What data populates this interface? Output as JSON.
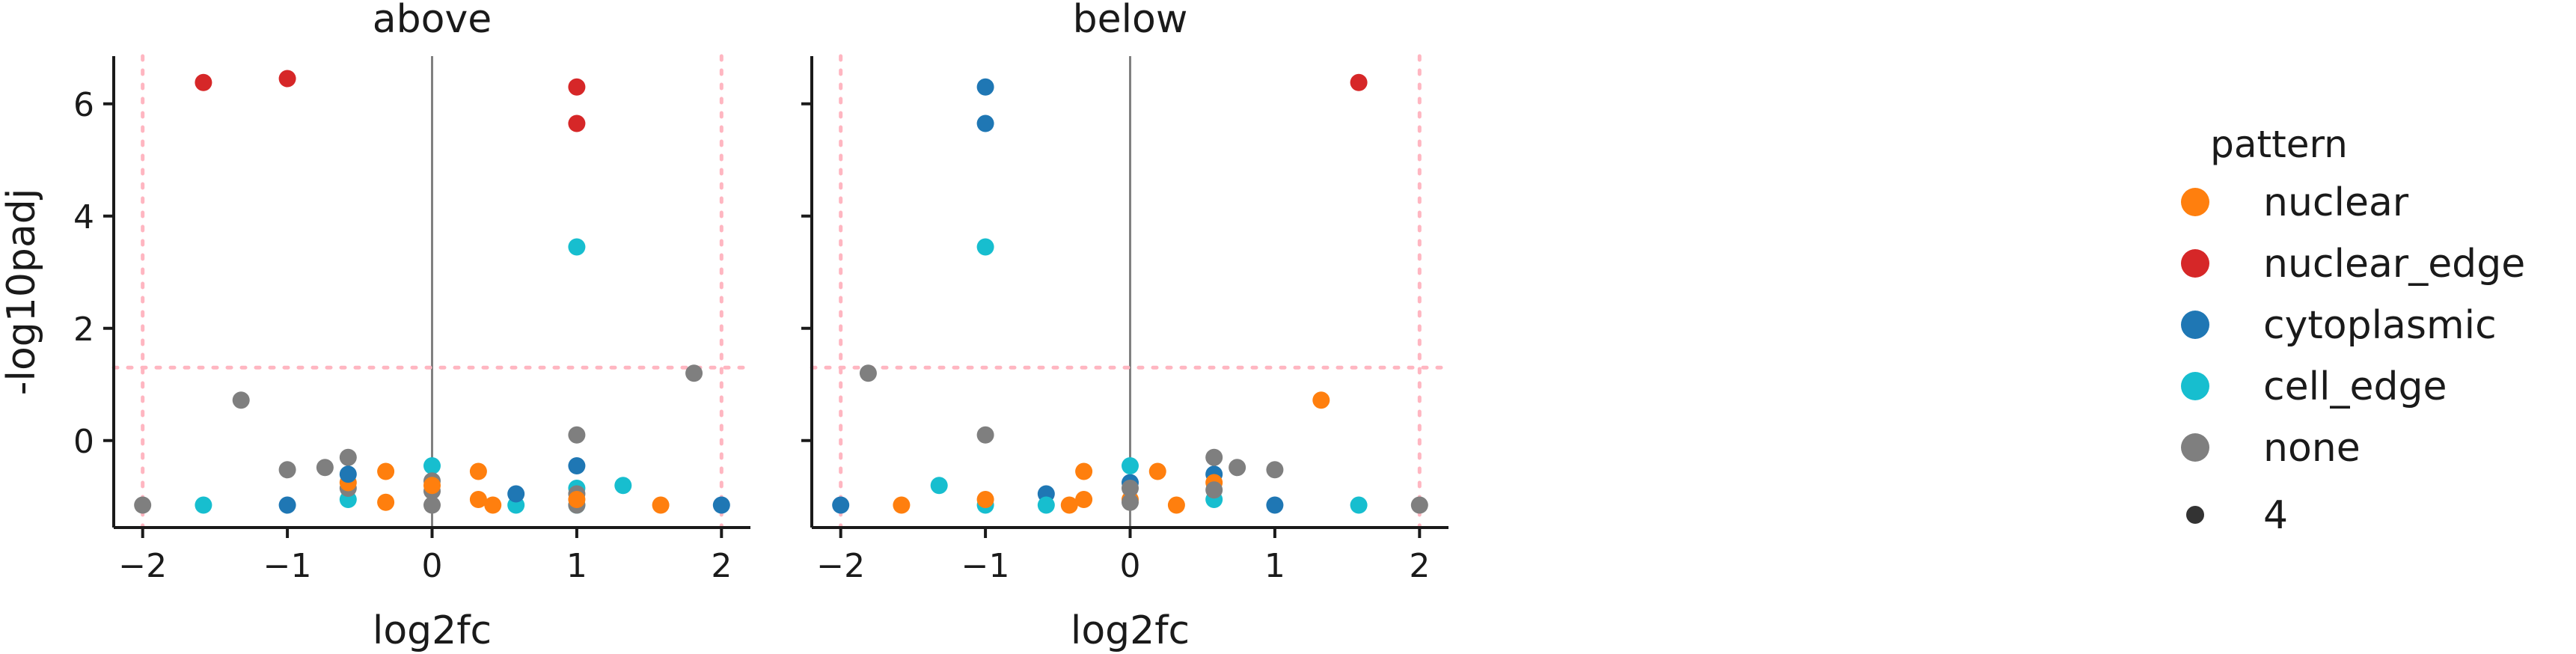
{
  "chart_data": {
    "type": "scatter",
    "xlabel": "log2fc",
    "ylabel": "-log10padj",
    "xlim": [
      -2.2,
      2.2
    ],
    "ylim": [
      -1.55,
      6.85
    ],
    "xticks": [
      -2,
      -1,
      0,
      1,
      2
    ],
    "yticks": [
      0,
      2,
      4,
      6
    ],
    "xtick_labels": [
      "−2",
      "−1",
      "0",
      "1",
      "2"
    ],
    "ytick_labels": [
      "0",
      "2",
      "4",
      "6"
    ],
    "threshold_lines": {
      "x": [
        -2,
        2
      ],
      "y": 1.3,
      "color": "#ffb6c1"
    },
    "zero_line": {
      "x": 0,
      "color": "#808080"
    },
    "legend": {
      "title": "pattern",
      "placement": "right",
      "entries": [
        {
          "label": "nuclear",
          "color": "#ff7f0e"
        },
        {
          "label": "nuclear_edge",
          "color": "#d62728"
        },
        {
          "label": "cytoplasmic",
          "color": "#1f77b4"
        },
        {
          "label": "cell_edge",
          "color": "#17becf"
        },
        {
          "label": "none",
          "color": "#7f7f7f"
        }
      ],
      "size_entry": {
        "label": "4",
        "color": "#333333"
      }
    },
    "panels": [
      {
        "title": "above",
        "series": [
          {
            "name": "nuclear_edge",
            "color": "#d62728",
            "points": [
              [
                -1.58,
                6.38
              ],
              [
                -1.0,
                6.45
              ],
              [
                1.0,
                6.3
              ],
              [
                1.0,
                5.65
              ]
            ]
          },
          {
            "name": "cell_edge",
            "color": "#17becf",
            "points": [
              [
                1.0,
                3.45
              ],
              [
                -1.58,
                -1.15
              ],
              [
                0.0,
                -0.45
              ],
              [
                0.58,
                -1.15
              ],
              [
                1.0,
                -0.85
              ],
              [
                1.32,
                -0.8
              ],
              [
                1.0,
                -1.15
              ],
              [
                -0.58,
                -1.05
              ]
            ]
          },
          {
            "name": "none",
            "color": "#7f7f7f",
            "points": [
              [
                -1.32,
                0.72
              ],
              [
                1.81,
                1.2
              ],
              [
                1.0,
                0.1
              ],
              [
                -2.0,
                -1.15
              ],
              [
                -1.0,
                -0.52
              ],
              [
                -0.74,
                -0.48
              ],
              [
                -0.58,
                -0.3
              ],
              [
                -0.58,
                -0.85
              ],
              [
                0.0,
                -0.72
              ],
              [
                0.0,
                -0.9
              ],
              [
                0.0,
                -1.15
              ],
              [
                1.0,
                -1.15
              ],
              [
                1.0,
                -0.95
              ]
            ]
          },
          {
            "name": "nuclear",
            "color": "#ff7f0e",
            "points": [
              [
                -0.32,
                -0.55
              ],
              [
                0.32,
                -0.55
              ],
              [
                -0.32,
                -1.1
              ],
              [
                0.32,
                -1.05
              ],
              [
                0.42,
                -1.15
              ],
              [
                1.58,
                -1.15
              ],
              [
                -0.58,
                -0.75
              ],
              [
                0.0,
                -0.8
              ],
              [
                1.0,
                -1.05
              ]
            ]
          },
          {
            "name": "cytoplasmic",
            "color": "#1f77b4",
            "points": [
              [
                -1.0,
                -1.15
              ],
              [
                0.58,
                -0.95
              ],
              [
                1.0,
                -0.45
              ],
              [
                2.0,
                -1.15
              ],
              [
                -0.58,
                -0.6
              ]
            ]
          }
        ]
      },
      {
        "title": "below",
        "series": [
          {
            "name": "cytoplasmic",
            "color": "#1f77b4",
            "points": [
              [
                -1.0,
                6.3
              ],
              [
                -1.0,
                5.65
              ],
              [
                -2.0,
                -1.15
              ],
              [
                -0.58,
                -0.95
              ],
              [
                0.58,
                -0.6
              ],
              [
                1.0,
                -1.15
              ],
              [
                0.0,
                -0.75
              ]
            ]
          },
          {
            "name": "cell_edge",
            "color": "#17becf",
            "points": [
              [
                -1.0,
                3.45
              ],
              [
                -1.32,
                -0.8
              ],
              [
                -1.0,
                -1.15
              ],
              [
                -0.58,
                -1.15
              ],
              [
                0.0,
                -0.45
              ],
              [
                0.58,
                -1.05
              ],
              [
                1.58,
                -1.15
              ]
            ]
          },
          {
            "name": "nuclear_edge",
            "color": "#d62728",
            "points": [
              [
                1.58,
                6.38
              ]
            ]
          },
          {
            "name": "nuclear",
            "color": "#ff7f0e",
            "points": [
              [
                1.32,
                0.72
              ],
              [
                -1.58,
                -1.15
              ],
              [
                -0.32,
                -0.55
              ],
              [
                0.19,
                -0.55
              ],
              [
                -0.32,
                -1.05
              ],
              [
                -0.42,
                -1.15
              ],
              [
                0.32,
                -1.15
              ],
              [
                0.58,
                -0.75
              ],
              [
                -1.0,
                -1.05
              ],
              [
                0.0,
                -1.05
              ]
            ]
          },
          {
            "name": "none",
            "color": "#7f7f7f",
            "points": [
              [
                -1.81,
                1.2
              ],
              [
                -1.0,
                0.1
              ],
              [
                0.0,
                -0.85
              ],
              [
                0.0,
                -1.1
              ],
              [
                0.58,
                -0.3
              ],
              [
                0.74,
                -0.48
              ],
              [
                1.0,
                -0.52
              ],
              [
                0.58,
                -0.88
              ],
              [
                2.0,
                -1.15
              ]
            ]
          }
        ]
      }
    ]
  }
}
